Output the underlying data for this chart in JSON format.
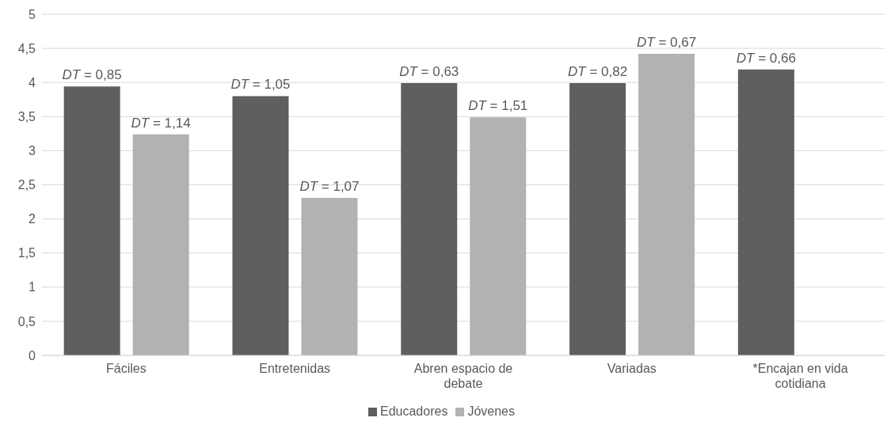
{
  "chart_data": {
    "type": "bar",
    "categories": [
      "Fáciles",
      "Entretenidas",
      "Abren espacio de debate",
      "Variadas",
      "*Encajan en vida cotidiana"
    ],
    "series": [
      {
        "name": "Educadores",
        "color": "#5f5f5f",
        "values": [
          3.94,
          3.8,
          3.99,
          3.99,
          4.19
        ]
      },
      {
        "name": "Jóvenes",
        "color": "#b2b2b2",
        "values": [
          3.24,
          2.31,
          3.49,
          4.42,
          null
        ]
      }
    ],
    "ylim": [
      0,
      5
    ],
    "yticks": [
      0,
      {
        "value": 0.5,
        "label": "0,5"
      },
      1,
      {
        "value": 1.5,
        "label": "1,5"
      },
      2,
      {
        "value": 2.5,
        "label": "2,5"
      },
      3,
      {
        "value": 3.5,
        "label": "3,5"
      },
      4,
      {
        "value": 4.5,
        "label": "4,5"
      },
      5
    ],
    "grid": "y",
    "legend": "bottom",
    "annotations": [
      "DT = 0,85",
      "DT = 1,14",
      "DT = 1,05",
      "DT = 1,07",
      "DT = 0,63",
      "DT = 1,51",
      "DT = 0,82",
      "DT = 0,67",
      "DT = 0,66"
    ]
  }
}
